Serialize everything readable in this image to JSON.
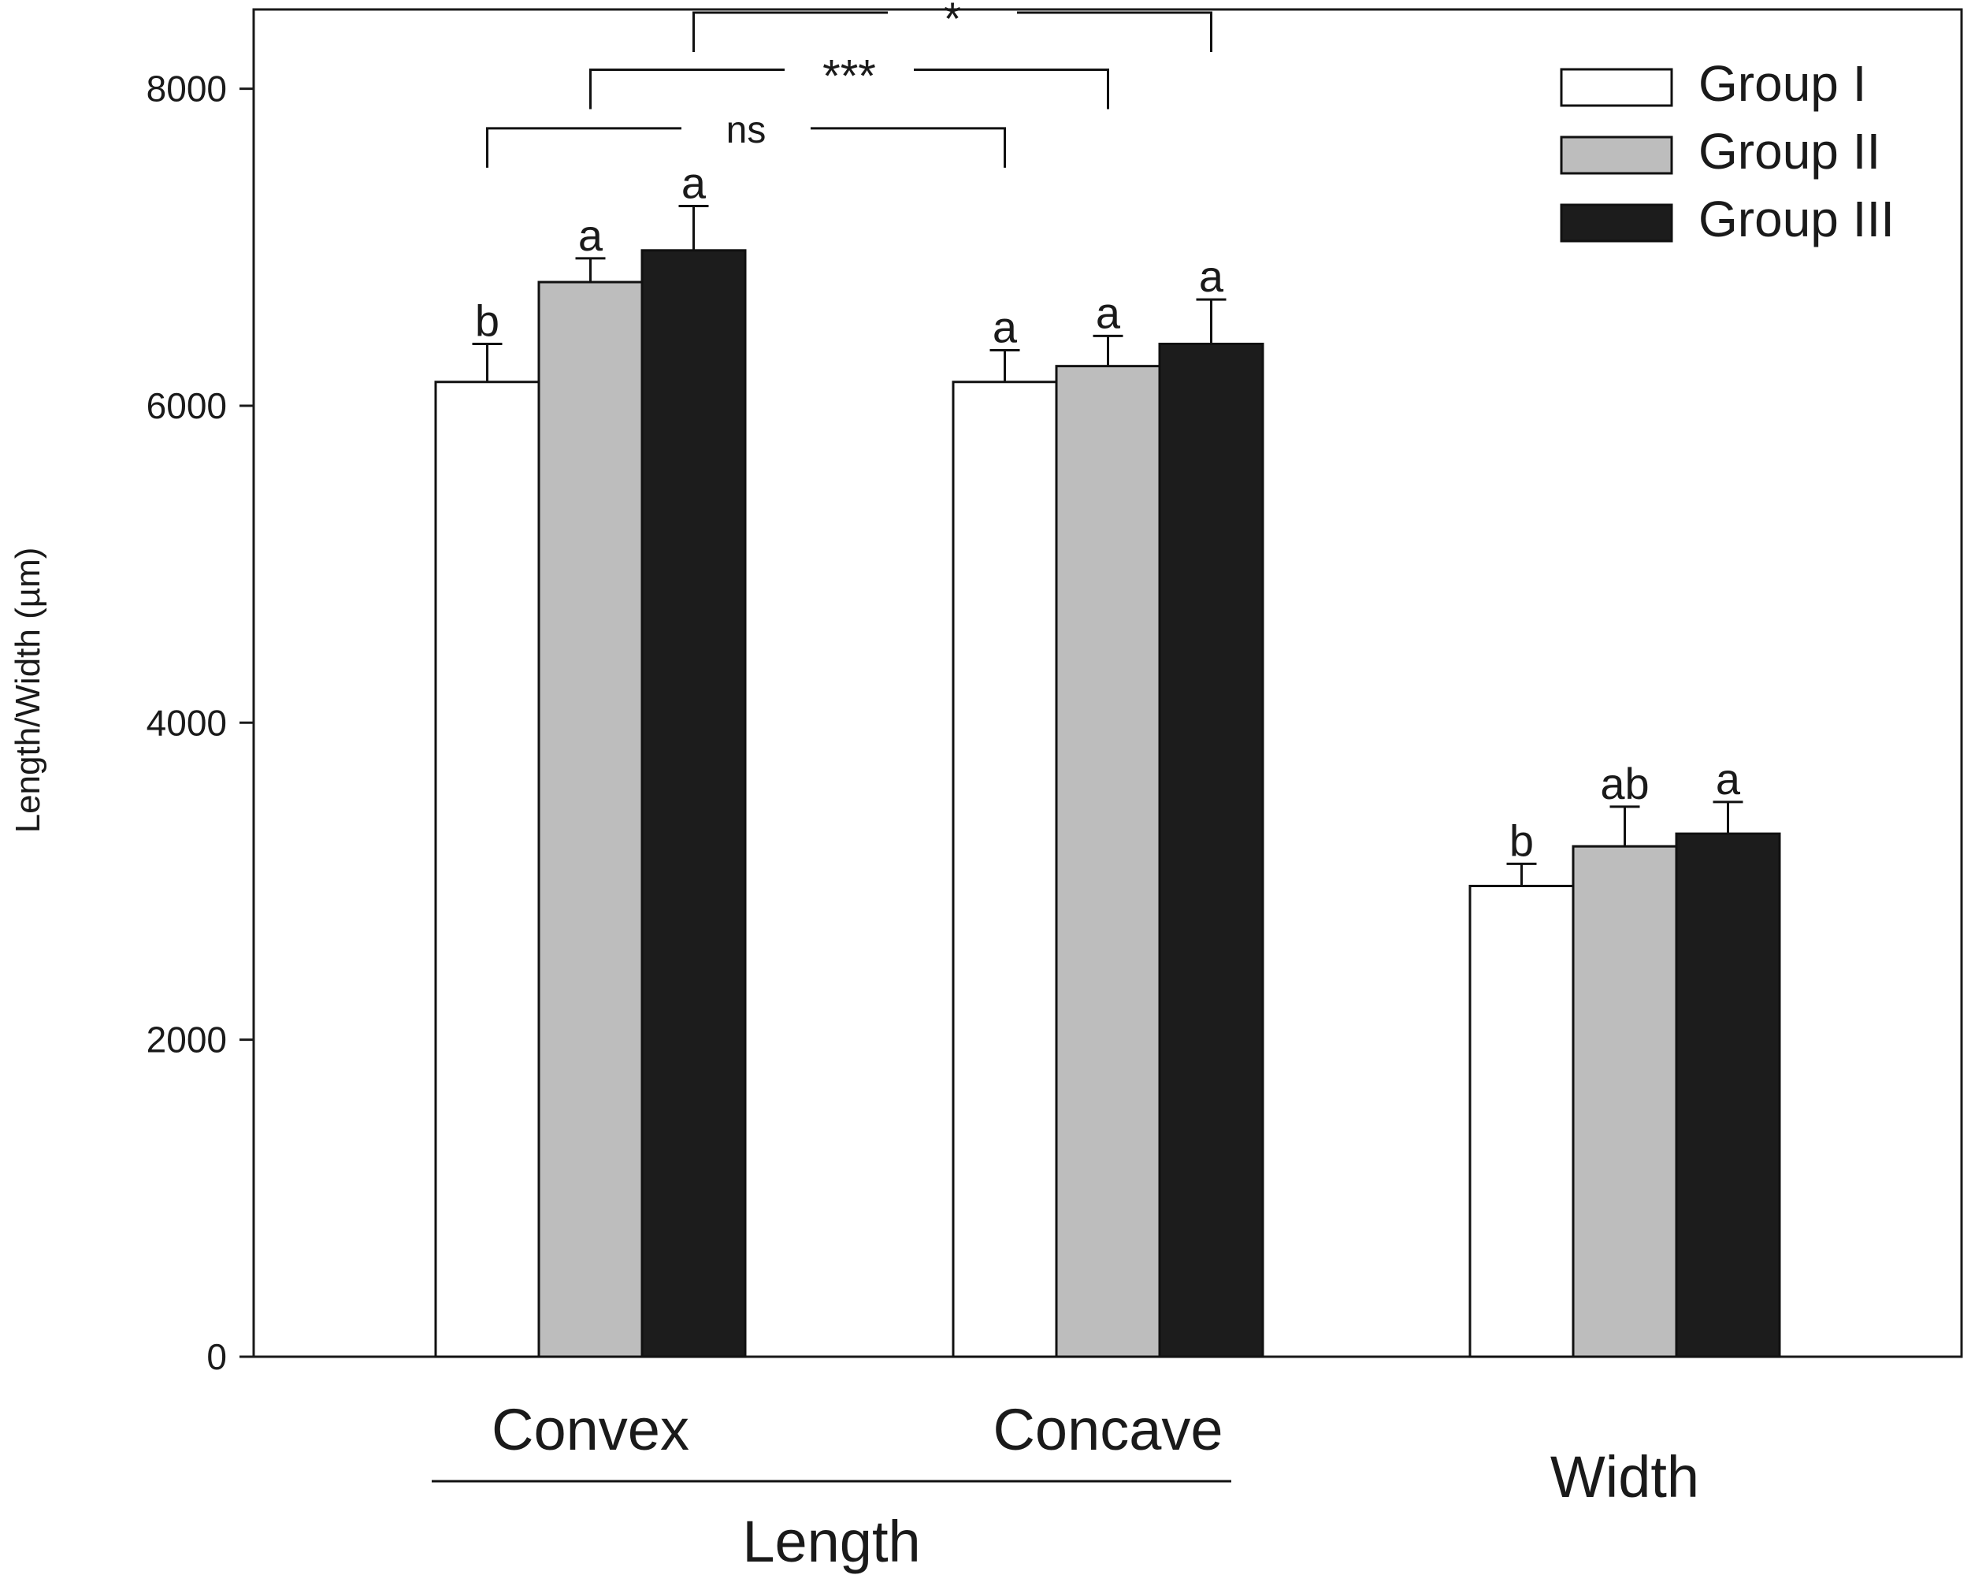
{
  "chart_data": {
    "type": "bar",
    "title": "",
    "ylabel": "Length/Width (µm)",
    "xlabel": "",
    "ylim": [
      0,
      8500
    ],
    "yticks": [
      0,
      2000,
      4000,
      6000,
      8000
    ],
    "grid": false,
    "legend_position": "top-right",
    "categories": [
      "Convex",
      "Concave",
      "Width"
    ],
    "group_label": {
      "text": "Length",
      "spans": [
        "Convex",
        "Concave"
      ]
    },
    "series": [
      {
        "name": "Group I",
        "color": "#ffffff",
        "values": [
          6150,
          6150,
          2970
        ],
        "errors": [
          240,
          200,
          140
        ],
        "letters": [
          "b",
          "a",
          "b"
        ]
      },
      {
        "name": "Group II",
        "color": "#bdbdbd",
        "values": [
          6780,
          6250,
          3220
        ],
        "errors": [
          150,
          190,
          250
        ],
        "letters": [
          "a",
          "a",
          "ab"
        ]
      },
      {
        "name": "Group III",
        "color": "#1c1c1c",
        "values": [
          6980,
          6390,
          3300
        ],
        "errors": [
          280,
          280,
          200
        ],
        "letters": [
          "a",
          "a",
          "a"
        ]
      }
    ],
    "significance": [
      {
        "label": "ns",
        "from": {
          "category": "Convex",
          "series": "Group I"
        },
        "to": {
          "category": "Concave",
          "series": "Group I"
        },
        "level": 7750
      },
      {
        "label": "***",
        "from": {
          "category": "Convex",
          "series": "Group II"
        },
        "to": {
          "category": "Concave",
          "series": "Group II"
        },
        "level": 8120
      },
      {
        "label": "*",
        "from": {
          "category": "Convex",
          "series": "Group III"
        },
        "to": {
          "category": "Concave",
          "series": "Group III"
        },
        "level": 8480
      }
    ]
  }
}
